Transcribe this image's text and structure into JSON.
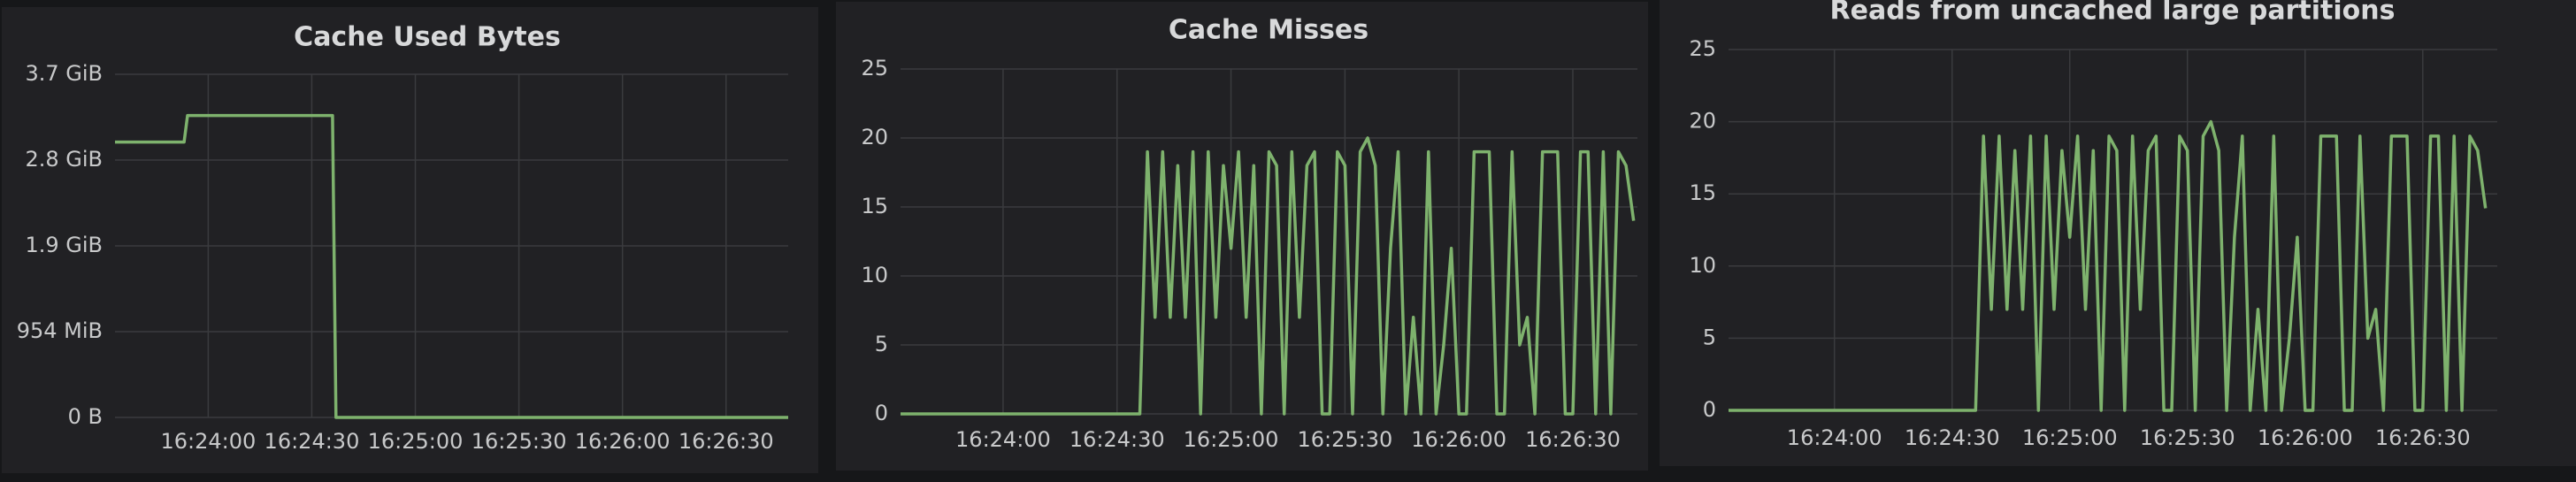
{
  "chart_data": [
    {
      "type": "line",
      "title": "Cache Used Bytes",
      "color": "#7eb26d",
      "grid": true,
      "x": [
        "16:23:33",
        "16:23:53",
        "16:23:54",
        "16:24:36",
        "16:24:37",
        "16:26:48"
      ],
      "values": [
        3210000000,
        3210000000,
        3520000000,
        3520000000,
        0,
        0
      ],
      "xlim": [
        "16:23:33",
        "16:26:48"
      ],
      "xticks": [
        "16:24:00",
        "16:24:30",
        "16:25:00",
        "16:25:30",
        "16:26:00",
        "16:26:30"
      ],
      "ylim": [
        0,
        4000000000
      ],
      "yticks": [
        {
          "value": 0,
          "label": "0 B"
        },
        {
          "value": 1000000000,
          "label": "954 MiB"
        },
        {
          "value": 2000000000,
          "label": "1.9 GiB"
        },
        {
          "value": 3000000000,
          "label": "2.8 GiB"
        },
        {
          "value": 4000000000,
          "label": "3.7 GiB"
        }
      ]
    },
    {
      "type": "line",
      "title": "Cache Misses",
      "color": "#7eb26d",
      "grid": true,
      "x": [
        "16:23:33",
        "16:24:36",
        "16:24:38",
        "16:24:40",
        "16:24:42",
        "16:24:44",
        "16:24:46",
        "16:24:48",
        "16:24:50",
        "16:24:52",
        "16:24:54",
        "16:24:56",
        "16:24:58",
        "16:25:00",
        "16:25:02",
        "16:25:04",
        "16:25:06",
        "16:25:08",
        "16:25:10",
        "16:25:12",
        "16:25:14",
        "16:25:16",
        "16:25:18",
        "16:25:20",
        "16:25:22",
        "16:25:24",
        "16:25:26",
        "16:25:28",
        "16:25:30",
        "16:25:32",
        "16:25:34",
        "16:25:36",
        "16:25:38",
        "16:25:40",
        "16:25:42",
        "16:25:44",
        "16:25:46",
        "16:25:48",
        "16:25:50",
        "16:25:52",
        "16:25:54",
        "16:25:56",
        "16:25:58",
        "16:26:00",
        "16:26:02",
        "16:26:04",
        "16:26:06",
        "16:26:08",
        "16:26:10",
        "16:26:12",
        "16:26:14",
        "16:26:16",
        "16:26:18",
        "16:26:20",
        "16:26:22",
        "16:26:24",
        "16:26:26",
        "16:26:28",
        "16:26:30",
        "16:26:32",
        "16:26:34",
        "16:26:36",
        "16:26:38",
        "16:26:40",
        "16:26:42",
        "16:26:44",
        "16:26:46"
      ],
      "values": [
        0,
        0,
        19,
        7,
        19,
        7,
        18,
        7,
        19,
        0,
        19,
        7,
        18,
        12,
        19,
        7,
        18,
        0,
        19,
        18,
        0,
        19,
        7,
        18,
        19,
        0,
        0,
        19,
        18,
        0,
        19,
        20,
        18,
        0,
        12,
        19,
        0,
        7,
        0,
        19,
        0,
        5,
        12,
        0,
        0,
        19,
        19,
        19,
        0,
        0,
        19,
        5,
        7,
        0,
        19,
        19,
        19,
        0,
        0,
        19,
        19,
        0,
        19,
        0,
        19,
        18,
        14
      ],
      "xlim": [
        "16:23:33",
        "16:26:47"
      ],
      "xticks": [
        "16:24:00",
        "16:24:30",
        "16:25:00",
        "16:25:30",
        "16:26:00",
        "16:26:30"
      ],
      "ylim": [
        0,
        25
      ],
      "yticks": [
        0,
        5,
        10,
        15,
        20,
        25
      ]
    },
    {
      "type": "line",
      "title": "Reads from uncached large partitions",
      "color": "#7eb26d",
      "grid": true,
      "x": [
        "16:23:33",
        "16:24:36",
        "16:24:38",
        "16:24:40",
        "16:24:42",
        "16:24:44",
        "16:24:46",
        "16:24:48",
        "16:24:50",
        "16:24:52",
        "16:24:54",
        "16:24:56",
        "16:24:58",
        "16:25:00",
        "16:25:02",
        "16:25:04",
        "16:25:06",
        "16:25:08",
        "16:25:10",
        "16:25:12",
        "16:25:14",
        "16:25:16",
        "16:25:18",
        "16:25:20",
        "16:25:22",
        "16:25:24",
        "16:25:26",
        "16:25:28",
        "16:25:30",
        "16:25:32",
        "16:25:34",
        "16:25:36",
        "16:25:38",
        "16:25:40",
        "16:25:42",
        "16:25:44",
        "16:25:46",
        "16:25:48",
        "16:25:50",
        "16:25:52",
        "16:25:54",
        "16:25:56",
        "16:25:58",
        "16:26:00",
        "16:26:02",
        "16:26:04",
        "16:26:06",
        "16:26:08",
        "16:26:10",
        "16:26:12",
        "16:26:14",
        "16:26:16",
        "16:26:18",
        "16:26:20",
        "16:26:22",
        "16:26:24",
        "16:26:26",
        "16:26:28",
        "16:26:30",
        "16:26:32",
        "16:26:34",
        "16:26:36",
        "16:26:38",
        "16:26:40",
        "16:26:42",
        "16:26:44",
        "16:26:46"
      ],
      "values": [
        0,
        0,
        19,
        7,
        19,
        7,
        18,
        7,
        19,
        0,
        19,
        7,
        18,
        12,
        19,
        7,
        18,
        0,
        19,
        18,
        0,
        19,
        7,
        18,
        19,
        0,
        0,
        19,
        18,
        0,
        19,
        20,
        18,
        0,
        12,
        19,
        0,
        7,
        0,
        19,
        0,
        5,
        12,
        0,
        0,
        19,
        19,
        19,
        0,
        0,
        19,
        5,
        7,
        0,
        19,
        19,
        19,
        0,
        0,
        19,
        19,
        0,
        19,
        0,
        19,
        18,
        14
      ],
      "xlim": [
        "16:23:33",
        "16:26:49"
      ],
      "xticks": [
        "16:24:00",
        "16:24:30",
        "16:25:00",
        "16:25:30",
        "16:26:00",
        "16:26:30"
      ],
      "ylim": [
        0,
        25
      ],
      "yticks": [
        0,
        5,
        10,
        15,
        20,
        25
      ]
    }
  ]
}
